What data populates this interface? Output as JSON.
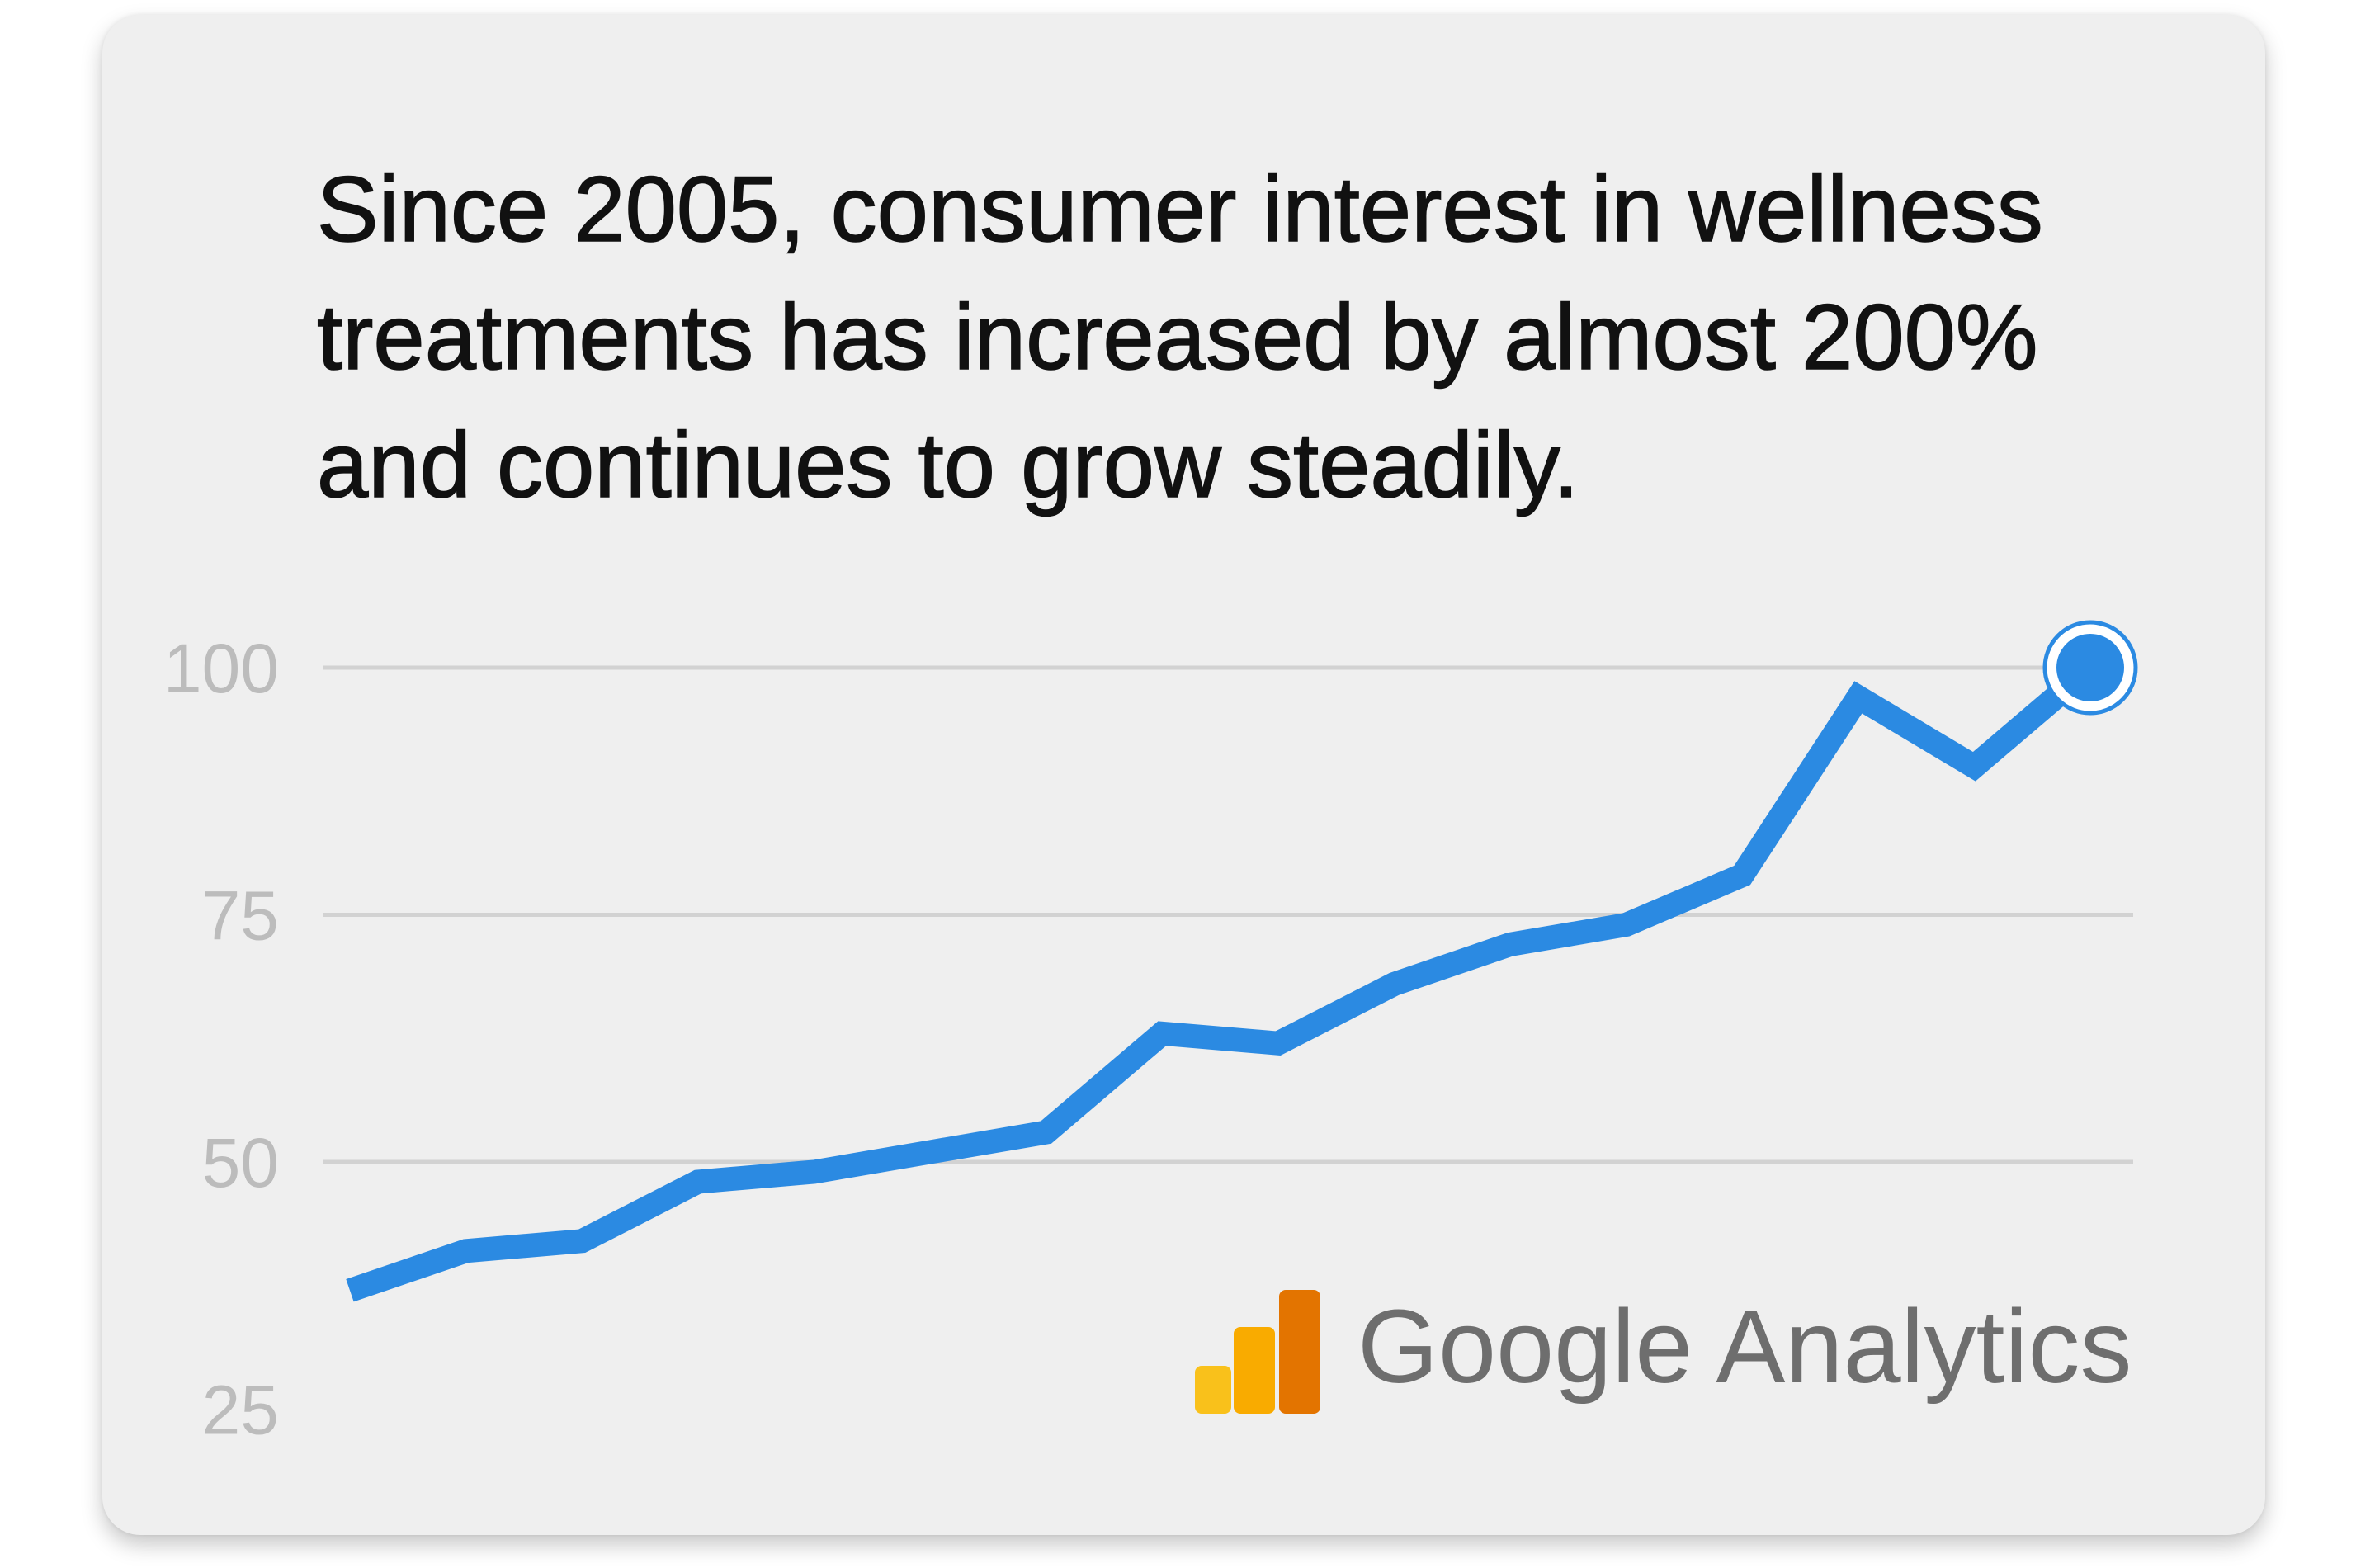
{
  "chart_data": {
    "type": "line",
    "title": "Since 2005, consumer interest in wellness treatments has increased by almost 200% and continues to grow steadily.",
    "ylim": [
      25,
      100
    ],
    "y_ticks": [
      100,
      75,
      50,
      25
    ],
    "y_gridlines": [
      100,
      75,
      50
    ],
    "grid": true,
    "values": [
      37,
      41,
      42,
      48,
      49,
      51,
      53,
      63,
      62,
      68,
      72,
      74,
      79,
      97,
      90,
      100
    ],
    "line_color": "#2b8ae2",
    "highlight_last_point": true
  },
  "source": {
    "name": "Google Analytics",
    "logo_icon": "google-analytics-logo-icon",
    "logo_colors": [
      "#f9c11b",
      "#f9ab00",
      "#e37400"
    ]
  },
  "colors": {
    "card_background": "#efefef",
    "title_text": "#111111",
    "tick_label": "#bcbcbc",
    "gridline": "#d2d2d2",
    "source_text": "#6e6e6e"
  }
}
